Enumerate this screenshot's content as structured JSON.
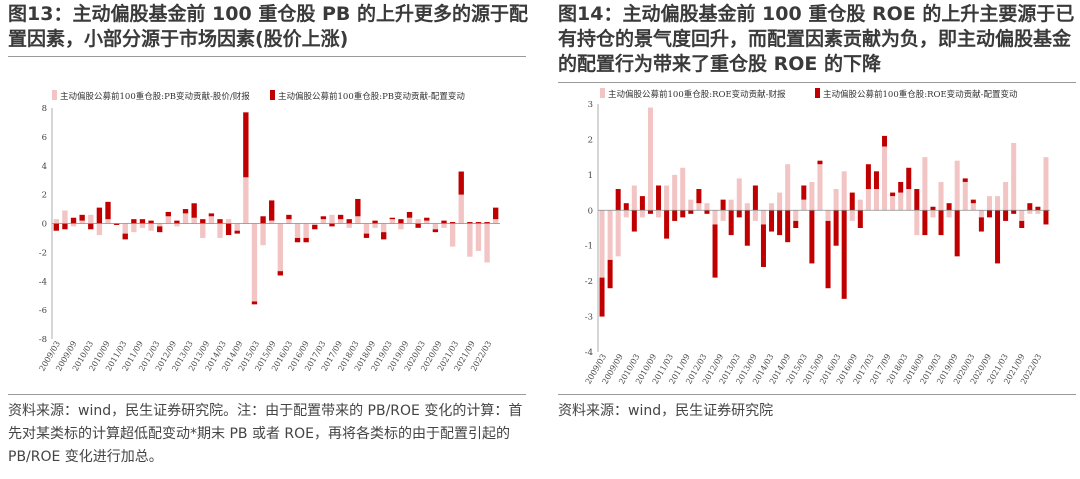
{
  "left": {
    "title": "图13：主动偏股基金前 100 重仓股 PB 的上升更多的源于配置因素，小部分源于市场因素(股价上涨)",
    "note": "资料来源：wind，民生证券研究院。注：由于配置带来的 PB/ROE 变化的计算：首先对某类标的计算超低配变动*期末 PB 或者 ROE，再将各类标的由于配置引起的 PB/ROE 变化进行加总。"
  },
  "right": {
    "title": "图14：主动偏股基金前 100 重仓股 ROE 的上升主要源于已有持仓的景气度回升，而配置因素贡献为负，即主动偏股基金的配置行为带来了重仓股 ROE 的下降",
    "note": "资料来源：wind，民生证券研究院"
  },
  "colors": {
    "pale": "#f2c4c4",
    "dark": "#c00000"
  },
  "chart_data": [
    {
      "type": "bar",
      "stacked": true,
      "ylim": [
        -8,
        8
      ],
      "yticks": [
        -8,
        -6,
        -4,
        -2,
        0,
        2,
        4,
        6,
        8
      ],
      "xticklabels": [
        "2009/03",
        "2009/09",
        "2010/03",
        "2010/09",
        "2011/03",
        "2011/09",
        "2012/03",
        "2012/09",
        "2013/03",
        "2013/09",
        "2014/03",
        "2014/09",
        "2015/03",
        "2015/09",
        "2016/03",
        "2016/09",
        "2017/03",
        "2017/09",
        "2018/03",
        "2018/09",
        "2019/03",
        "2019/09",
        "2020/03",
        "2020/09",
        "2021/03",
        "2021/09",
        "2022/03"
      ],
      "series": [
        {
          "name": "主动偏股公募前100重仓股:PB变动贡献-股价/财报",
          "values": [
            0.3,
            0.9,
            -0.2,
            0.2,
            0.6,
            -0.8,
            0.3,
            0.0,
            -0.7,
            -0.6,
            -0.3,
            -0.5,
            -0.2,
            0.5,
            -0.2,
            0.7,
            0.4,
            -1.0,
            0.5,
            -1.0,
            0.3,
            -0.5,
            3.2,
            -5.4,
            -1.5,
            0.2,
            -3.3,
            0.3,
            -1.0,
            -1.0,
            -0.1,
            0.3,
            0.6,
            0.3,
            -0.3,
            0.5,
            -0.7,
            -0.3,
            -0.6,
            0.3,
            -0.4,
            0.4,
            0.3,
            0.2,
            -0.4,
            -0.3,
            -1.6,
            2.0,
            -2.3,
            -1.9,
            -2.7,
            0.3
          ]
        },
        {
          "name": "主动偏股公募前100重仓股:PB变动贡献-配置变动",
          "values": [
            -0.5,
            -0.4,
            0.4,
            0.4,
            -0.4,
            1.1,
            1.2,
            -0.1,
            -0.4,
            0.3,
            0.3,
            0.2,
            -0.4,
            0.3,
            0.2,
            0.3,
            1.0,
            0.3,
            0.2,
            0.3,
            -0.8,
            -0.2,
            4.5,
            -0.2,
            0.5,
            1.4,
            -0.3,
            0.3,
            -0.3,
            -0.3,
            -0.3,
            0.2,
            -0.2,
            0.3,
            0.3,
            1.2,
            -0.3,
            0.2,
            -0.5,
            0.1,
            0.3,
            0.4,
            -0.3,
            0.2,
            -0.2,
            0.2,
            0.1,
            1.6,
            0.1,
            0.1,
            0.1,
            0.8
          ]
        }
      ]
    },
    {
      "type": "bar",
      "stacked": true,
      "ylim": [
        -4,
        3
      ],
      "yticks": [
        -4,
        -3,
        -2,
        -1,
        0,
        1,
        2,
        3
      ],
      "xticklabels": [
        "2009/03",
        "2009/09",
        "2010/03",
        "2010/09",
        "2011/03",
        "2011/09",
        "2012/03",
        "2012/09",
        "2013/03",
        "2013/09",
        "2014/03",
        "2014/09",
        "2015/03",
        "2015/09",
        "2016/03",
        "2016/09",
        "2017/03",
        "2017/09",
        "2018/03",
        "2018/09",
        "2019/03",
        "2019/09",
        "2020/03",
        "2020/09",
        "2021/03",
        "2021/09",
        "2022/03"
      ],
      "series": [
        {
          "name": "主动偏股公募前100重仓股:ROE变动贡献-财报",
          "values": [
            -1.9,
            -1.4,
            -1.3,
            -0.2,
            0.7,
            -0.2,
            2.9,
            -0.2,
            0.7,
            1.0,
            1.2,
            0.3,
            0.2,
            0.2,
            -0.4,
            -0.3,
            0.3,
            0.9,
            0.2,
            -0.3,
            -0.4,
            0.2,
            0.5,
            1.3,
            -0.3,
            0.3,
            0.8,
            1.3,
            -0.3,
            0.6,
            1.1,
            -0.3,
            0.3,
            0.6,
            0.6,
            1.8,
            0.4,
            0.5,
            0.6,
            -0.7,
            1.5,
            -0.2,
            0.8,
            -0.2,
            1.4,
            0.8,
            0.2,
            -0.2,
            0.4,
            0.4,
            0.8,
            1.9,
            -0.3,
            -0.1,
            -0.1,
            1.5
          ]
        },
        {
          "name": "主动偏股公募前100重仓股:ROE变动贡献-配置变动",
          "values": [
            -1.1,
            -0.8,
            0.6,
            0.2,
            -0.6,
            0.4,
            -0.1,
            0.7,
            -0.8,
            -0.3,
            -0.2,
            -0.1,
            0.4,
            -0.1,
            -1.5,
            0.3,
            -0.7,
            -0.2,
            -1.0,
            0.7,
            -1.2,
            -0.6,
            -0.7,
            -0.9,
            -0.2,
            0.4,
            -1.5,
            0.1,
            -1.9,
            -1.0,
            -2.5,
            0.5,
            -0.5,
            0.7,
            0.5,
            0.3,
            0.1,
            0.3,
            0.6,
            0.6,
            -0.7,
            0.1,
            -0.7,
            0.2,
            -1.3,
            0.1,
            0.1,
            -0.4,
            -0.2,
            -1.5,
            -0.3,
            -0.1,
            -0.2,
            0.2,
            0.1,
            -0.4
          ]
        }
      ]
    }
  ]
}
